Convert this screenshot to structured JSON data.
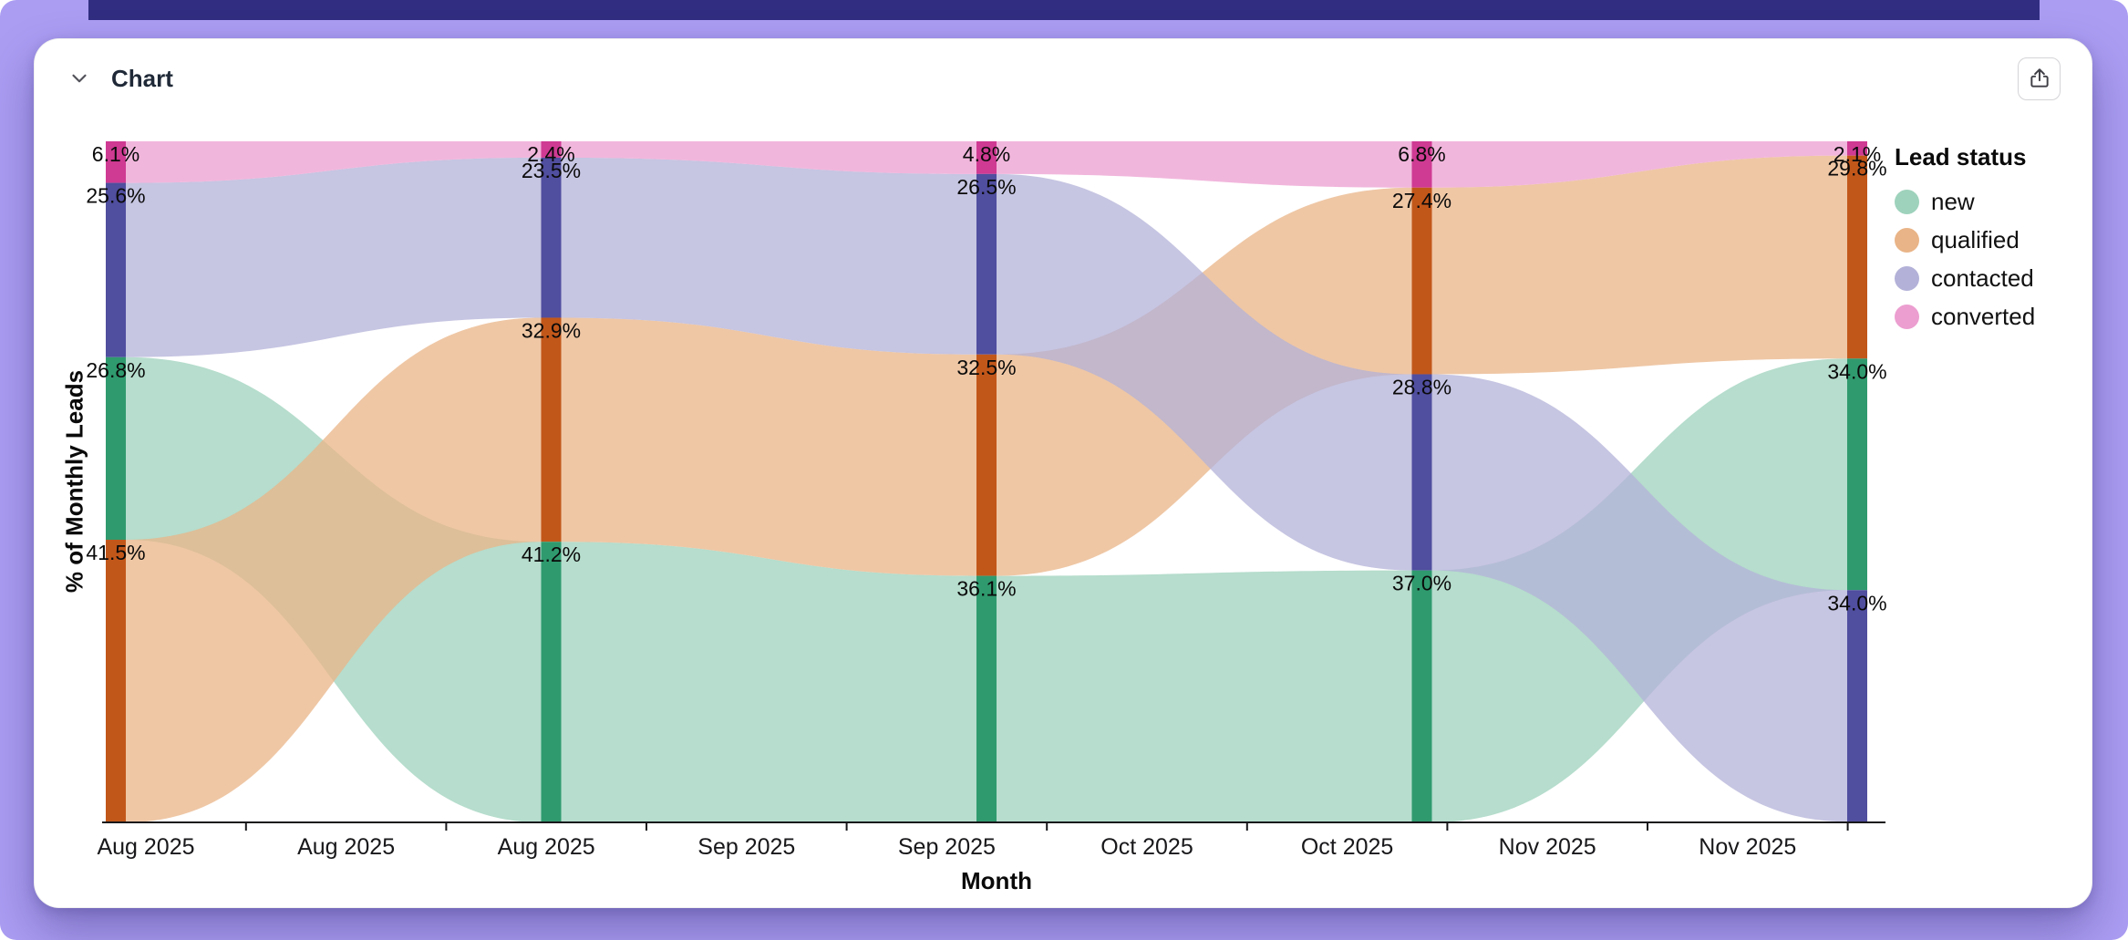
{
  "page": {
    "background_color": "#ab9df2",
    "top_strip_color": "#312e81"
  },
  "panel": {
    "title": "Chart"
  },
  "chart_data": {
    "type": "alluvial",
    "title": "",
    "xlabel": "Month",
    "ylabel": "% of Monthly Leads",
    "legend_title": "Lead status",
    "legend_position": "top-right",
    "ylim": [
      0,
      100
    ],
    "value_format": "one-decimal-percent",
    "x_tick_labels": [
      "Aug 2025",
      "Aug 2025",
      "Aug 2025",
      "Sep 2025",
      "Sep 2025",
      "Oct 2025",
      "Oct 2025",
      "Nov 2025",
      "Nov 2025"
    ],
    "statuses": [
      {
        "name": "new",
        "node_color": "#2f9a6e",
        "flow_color": "#9ed2bc"
      },
      {
        "name": "qualified",
        "node_color": "#c2571a",
        "flow_color": "#e9b487"
      },
      {
        "name": "contacted",
        "node_color": "#504e9f",
        "flow_color": "#b3b1d8"
      },
      {
        "name": "converted",
        "node_color": "#cf3a93",
        "flow_color": "#ec9ed0"
      }
    ],
    "stages": [
      {
        "month": "Aug 2025",
        "segments": [
          {
            "status": "converted",
            "pct": 6.1
          },
          {
            "status": "contacted",
            "pct": 25.6
          },
          {
            "status": "new",
            "pct": 26.8
          },
          {
            "status": "qualified",
            "pct": 41.5
          }
        ]
      },
      {
        "month": "Aug 2025",
        "segments": [
          {
            "status": "converted",
            "pct": 2.4
          },
          {
            "status": "contacted",
            "pct": 23.5
          },
          {
            "status": "qualified",
            "pct": 32.9
          },
          {
            "status": "new",
            "pct": 41.2
          }
        ]
      },
      {
        "month": "Sep 2025",
        "segments": [
          {
            "status": "converted",
            "pct": 4.8
          },
          {
            "status": "contacted",
            "pct": 26.5
          },
          {
            "status": "qualified",
            "pct": 32.5
          },
          {
            "status": "new",
            "pct": 36.1
          }
        ]
      },
      {
        "month": "Oct 2025",
        "segments": [
          {
            "status": "converted",
            "pct": 6.8
          },
          {
            "status": "qualified",
            "pct": 27.4
          },
          {
            "status": "contacted",
            "pct": 28.8
          },
          {
            "status": "new",
            "pct": 37.0
          }
        ]
      },
      {
        "month": "Nov 2025",
        "segments": [
          {
            "status": "converted",
            "pct": 2.1
          },
          {
            "status": "qualified",
            "pct": 29.8
          },
          {
            "status": "new",
            "pct": 34.0
          },
          {
            "status": "contacted",
            "pct": 34.0
          }
        ]
      }
    ]
  }
}
